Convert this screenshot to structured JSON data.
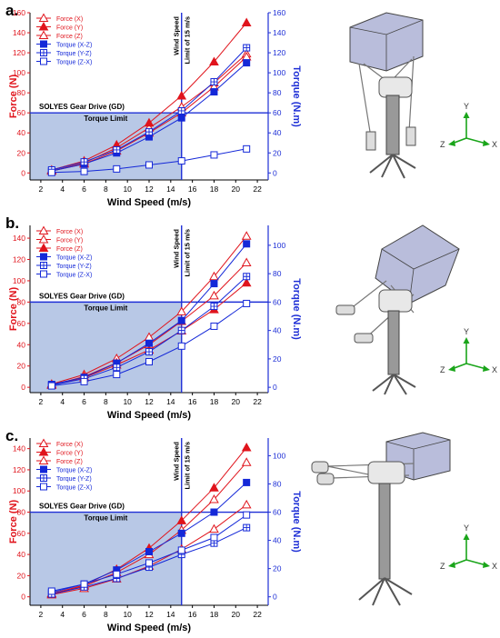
{
  "panels": [
    {
      "label": "a."
    },
    {
      "label": "b."
    },
    {
      "label": "c."
    }
  ],
  "colors": {
    "force": "#e0141c",
    "torque": "#1428d8",
    "limit_fill": "#b8c8e6",
    "axis_right": "#1e2fd6"
  },
  "chart_data": [
    {
      "type": "line",
      "xlabel": "Wind Speed (m/s)",
      "ylabel": "Force (N)",
      "y2label": "Torque (N.m)",
      "xlim": [
        1,
        23
      ],
      "xticks": [
        2,
        4,
        6,
        8,
        10,
        12,
        14,
        16,
        18,
        20,
        22
      ],
      "ylim": [
        -7,
        160
      ],
      "yticks": [
        0,
        20,
        40,
        60,
        80,
        100,
        120,
        140,
        160
      ],
      "y2lim": [
        -7,
        160
      ],
      "y2ticks": [
        0,
        20,
        40,
        60,
        80,
        100,
        120,
        140,
        160
      ],
      "torque_limit": 60,
      "wind_limit": 15,
      "annotations": {
        "gd": "SOLYES Gear Drive (GD)",
        "torque_limit": "Torque Limit",
        "wind_l1": "Wind Speed",
        "wind_l2": "Limit of 15 m/s"
      },
      "x": [
        3,
        6,
        9,
        12,
        15,
        18,
        21
      ],
      "series": [
        {
          "name": "Force (X)",
          "axis": "left",
          "marker": "tri-open",
          "values": [
            2,
            10,
            25,
            45,
            66,
            90,
            119
          ]
        },
        {
          "name": "Force (Y)",
          "axis": "left",
          "marker": "tri-filled",
          "values": [
            3,
            12,
            28,
            50,
            77,
            111,
            150
          ]
        },
        {
          "name": "Force (Z)",
          "axis": "left",
          "marker": "tri-open",
          "values": [
            2,
            9,
            22,
            40,
            60,
            86,
            116
          ]
        },
        {
          "name": "Torque (X-Z)",
          "axis": "right",
          "marker": "sq-filled",
          "values": [
            2,
            9,
            20,
            36,
            55,
            81,
            110
          ]
        },
        {
          "name": "Torque (Y-Z)",
          "axis": "right",
          "marker": "sq-cross",
          "values": [
            3,
            11,
            23,
            41,
            62,
            91,
            125
          ]
        },
        {
          "name": "Torque  (Z-X)",
          "axis": "right",
          "marker": "sq-open",
          "values": [
            0.5,
            1.5,
            4,
            8,
            12,
            18,
            24
          ]
        }
      ]
    },
    {
      "type": "line",
      "xlabel": "Wind Speed (m/s)",
      "ylabel": "Force (N)",
      "y2label": "Torque (N.m)",
      "xlim": [
        1,
        23
      ],
      "xticks": [
        2,
        4,
        6,
        8,
        10,
        12,
        14,
        16,
        18,
        20,
        22
      ],
      "ylim": [
        -5,
        152
      ],
      "yticks": [
        0,
        20,
        40,
        60,
        80,
        100,
        120,
        140
      ],
      "y2lim": [
        -3.75,
        114
      ],
      "y2ticks": [
        0,
        20,
        40,
        60,
        80,
        100
      ],
      "torque_limit": 60,
      "wind_limit": 15,
      "annotations": {
        "gd": "SOLYES Gear Drive (GD)",
        "torque_limit": "Torque Limit",
        "wind_l1": "Wind Speed",
        "wind_l2": "Limit of 15 m/s"
      },
      "x": [
        3,
        6,
        9,
        12,
        15,
        18,
        21
      ],
      "series": [
        {
          "name": "Force (X)",
          "axis": "left",
          "marker": "tri-open",
          "values": [
            3,
            12,
            27,
            47,
            71,
            104,
            142
          ]
        },
        {
          "name": "Force (Y)",
          "axis": "left",
          "marker": "tri-open",
          "values": [
            2,
            10,
            23,
            40,
            62,
            86,
            117
          ]
        },
        {
          "name": "Force (Z)",
          "axis": "left",
          "marker": "tri-filled",
          "values": [
            2,
            9,
            21,
            35,
            53,
            73,
            98
          ]
        },
        {
          "name": "Torque (X-Z)",
          "axis": "right",
          "marker": "sq-filled",
          "values": [
            2,
            7,
            17,
            31,
            47,
            73,
            101
          ]
        },
        {
          "name": "Torque (Y-Z)",
          "axis": "right",
          "marker": "sq-cross",
          "values": [
            1.5,
            6,
            14,
            25,
            40,
            57,
            78
          ]
        },
        {
          "name": "Torque  (Z-X)",
          "axis": "right",
          "marker": "sq-open",
          "values": [
            1,
            4,
            9,
            18,
            29,
            43,
            59
          ]
        }
      ]
    },
    {
      "type": "line",
      "xlabel": "Wind Speed (m/s)",
      "ylabel": "Force (N)",
      "y2label": "Torque (N.m)",
      "xlim": [
        1,
        23
      ],
      "xticks": [
        2,
        4,
        6,
        8,
        10,
        12,
        14,
        16,
        18,
        20,
        22
      ],
      "ylim": [
        -8,
        150
      ],
      "yticks": [
        0,
        20,
        40,
        60,
        80,
        100,
        120,
        140
      ],
      "y2lim": [
        -6,
        112.5
      ],
      "y2ticks": [
        0,
        20,
        40,
        60,
        80,
        100
      ],
      "torque_limit": 60,
      "wind_limit": 15,
      "annotations": {
        "gd": "SOLYES Gear Drive (GD)",
        "torque_limit": "Torque Limit",
        "wind_l1": "Wind Speed",
        "wind_l2": "Limit of 15 m/s"
      },
      "x": [
        3,
        6,
        9,
        12,
        15,
        18,
        21
      ],
      "series": [
        {
          "name": "Force (X)",
          "axis": "left",
          "marker": "tri-open",
          "values": [
            3,
            10,
            23,
            40,
            63,
            92,
            127
          ]
        },
        {
          "name": "Force (Y)",
          "axis": "left",
          "marker": "tri-filled",
          "values": [
            3,
            11,
            26,
            46,
            72,
            103,
            141
          ]
        },
        {
          "name": "Force (Z)",
          "axis": "left",
          "marker": "tri-open",
          "values": [
            2,
            8,
            17,
            29,
            45,
            64,
            87
          ]
        },
        {
          "name": "Torque (X-Z)",
          "axis": "right",
          "marker": "sq-filled",
          "values": [
            3,
            9,
            19,
            32,
            45,
            60,
            81
          ]
        },
        {
          "name": "Torque (Y-Z)",
          "axis": "right",
          "marker": "sq-cross",
          "values": [
            2,
            7,
            13,
            21,
            30,
            38,
            49
          ]
        },
        {
          "name": "Torque  (Z-X)",
          "axis": "right",
          "marker": "sq-open",
          "values": [
            4,
            9,
            16,
            24,
            33,
            42,
            58
          ]
        }
      ]
    }
  ],
  "axes_triad": {
    "x": "X",
    "y": "Y",
    "z": "Z"
  }
}
